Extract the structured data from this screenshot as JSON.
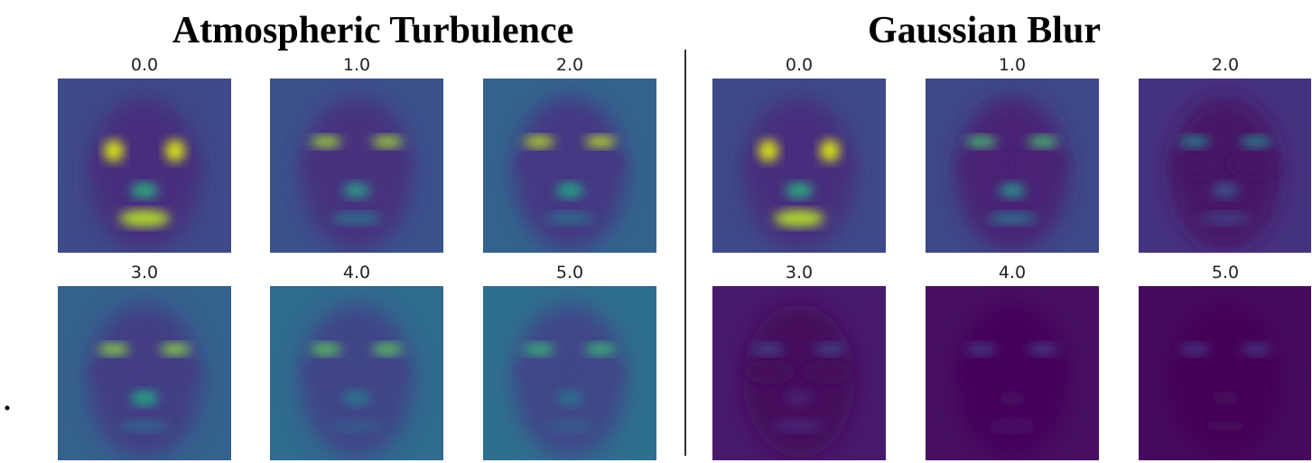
{
  "panels": [
    {
      "title": "Atmospheric Turbulence",
      "labels": [
        "0.0",
        "1.0",
        "2.0",
        "3.0",
        "4.0",
        "5.0"
      ]
    },
    {
      "title": "Gaussian Blur",
      "labels": [
        "0.0",
        "1.0",
        "2.0",
        "3.0",
        "4.0",
        "5.0"
      ]
    }
  ]
}
